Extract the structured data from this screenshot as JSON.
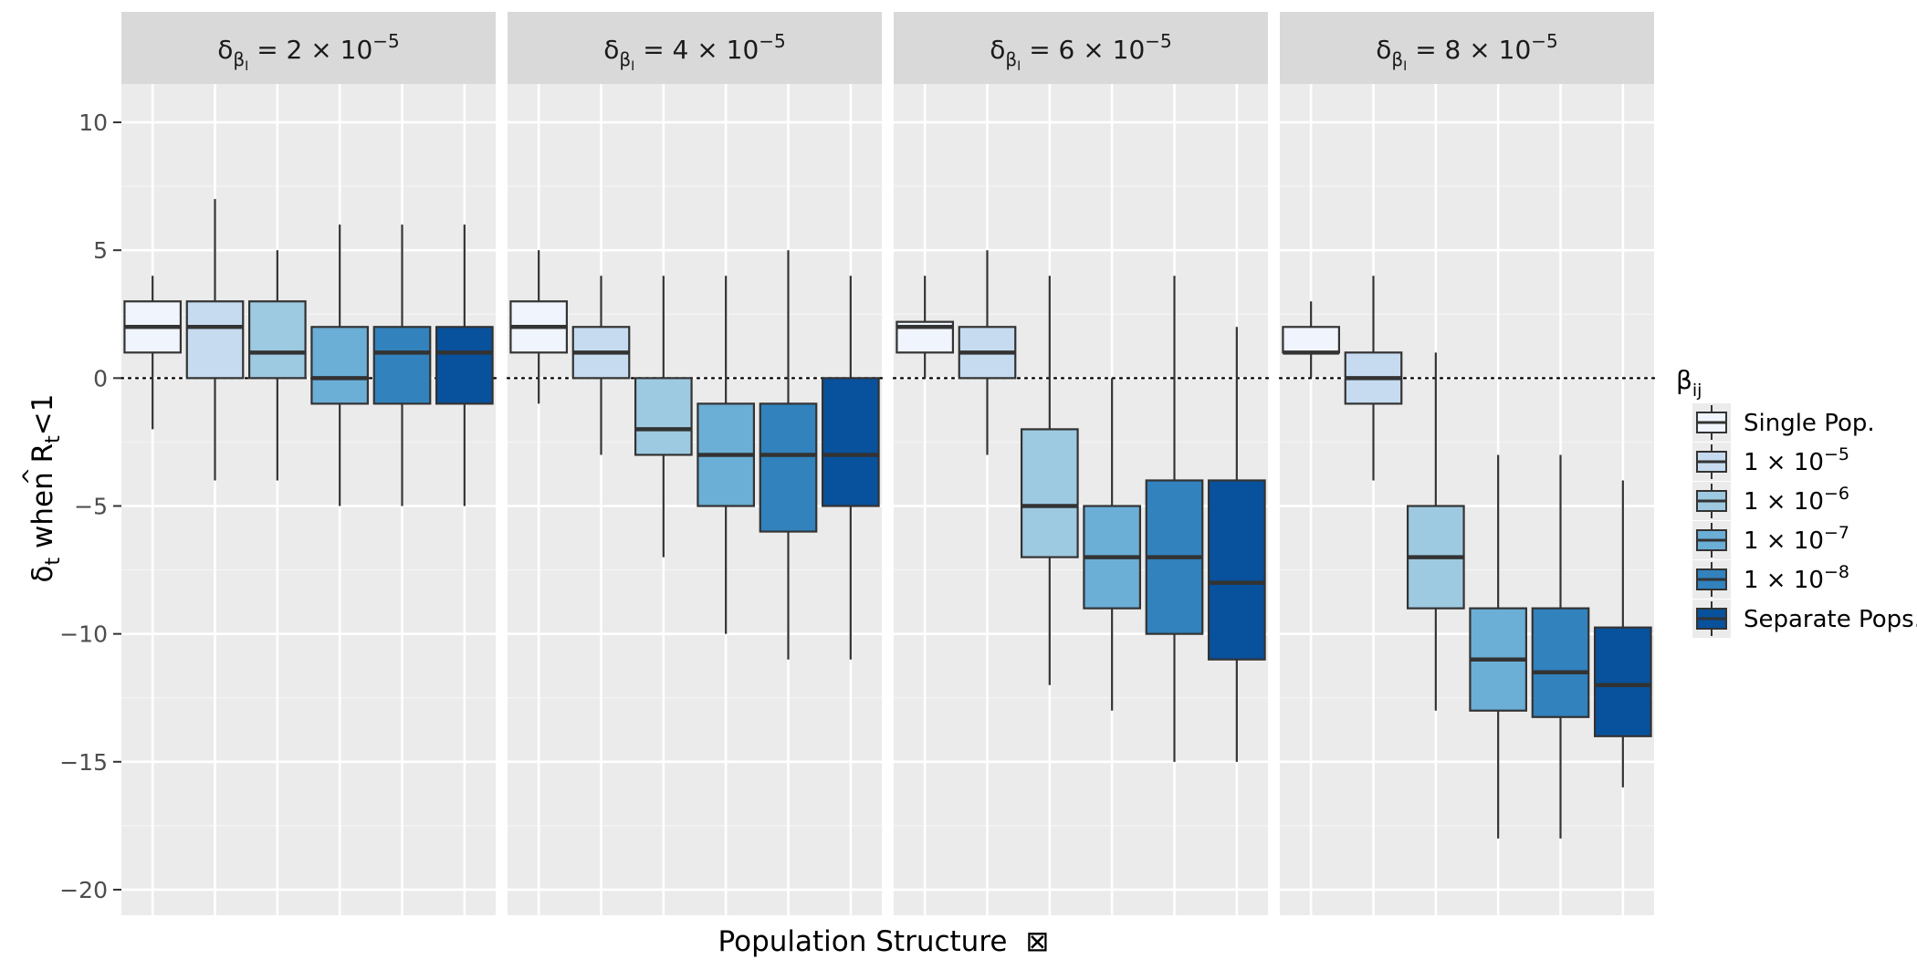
{
  "chart_data": {
    "type": "boxplot",
    "xlabel": "Population Structure",
    "xlabel_suffix": "⊠",
    "ylabel": {
      "prefix": "δ",
      "sub": "t",
      "middle": " when ",
      "hat_symbol": "R",
      "hat": "^",
      "hat_sub": "t",
      "suffix": "<1"
    },
    "ylim": [
      -21,
      11.5
    ],
    "yticks": [
      10,
      5,
      0,
      -5,
      -10,
      -15,
      -20
    ],
    "ytick_labels": [
      "10",
      "5",
      "0",
      "−5",
      "−10",
      "−15",
      "−20"
    ],
    "reference_line": 0,
    "legend": {
      "title_main": "β",
      "title_sub": "ij",
      "entries": [
        {
          "key": "single",
          "label": "Single Pop.",
          "color": "#F0F4FC"
        },
        {
          "key": "e5",
          "base": "1 × 10",
          "exp": "−5",
          "color": "#C6DBEF"
        },
        {
          "key": "e6",
          "base": "1 × 10",
          "exp": "−6",
          "color": "#9ECAE1"
        },
        {
          "key": "e7",
          "base": "1 × 10",
          "exp": "−7",
          "color": "#6BAED6"
        },
        {
          "key": "e8",
          "base": "1 × 10",
          "exp": "−8",
          "color": "#3182BD"
        },
        {
          "key": "sep",
          "label": "Separate Pops.",
          "color": "#08519C"
        }
      ]
    },
    "panels": [
      {
        "strip": {
          "prefix": "δ",
          "sub": "β",
          "subsub": "I",
          "eq": " = 2 × 10",
          "exp": "−5"
        },
        "boxes": [
          {
            "group": "Single Pop.",
            "min": -2,
            "q1": 1,
            "median": 2,
            "q3": 3,
            "max": 4
          },
          {
            "group": "1 × 10^-5",
            "min": -4,
            "q1": 0,
            "median": 2,
            "q3": 3,
            "max": 7
          },
          {
            "group": "1 × 10^-6",
            "min": -4,
            "q1": 0,
            "median": 1,
            "q3": 3,
            "max": 5
          },
          {
            "group": "1 × 10^-7",
            "min": -5,
            "q1": -1,
            "median": 0,
            "q3": 2,
            "max": 6
          },
          {
            "group": "1 × 10^-8",
            "min": -5,
            "q1": -1,
            "median": 1,
            "q3": 2,
            "max": 6
          },
          {
            "group": "Separate Pops.",
            "min": -5,
            "q1": -1,
            "median": 1,
            "q3": 2,
            "max": 6
          }
        ]
      },
      {
        "strip": {
          "prefix": "δ",
          "sub": "β",
          "subsub": "I",
          "eq": " = 4 × 10",
          "exp": "−5"
        },
        "boxes": [
          {
            "group": "Single Pop.",
            "min": -1,
            "q1": 1,
            "median": 2,
            "q3": 3,
            "max": 5
          },
          {
            "group": "1 × 10^-5",
            "min": -3,
            "q1": 0,
            "median": 1,
            "q3": 2,
            "max": 4
          },
          {
            "group": "1 × 10^-6",
            "min": -7,
            "q1": -3,
            "median": -2,
            "q3": 0,
            "max": 4
          },
          {
            "group": "1 × 10^-7",
            "min": -10,
            "q1": -5,
            "median": -3,
            "q3": -1,
            "max": 4
          },
          {
            "group": "1 × 10^-8",
            "min": -11,
            "q1": -6,
            "median": -3,
            "q3": -1,
            "max": 5
          },
          {
            "group": "Separate Pops.",
            "min": -11,
            "q1": -5,
            "median": -3,
            "q3": 0,
            "max": 4
          }
        ]
      },
      {
        "strip": {
          "prefix": "δ",
          "sub": "β",
          "subsub": "I",
          "eq": " = 6 × 10",
          "exp": "−5"
        },
        "boxes": [
          {
            "group": "Single Pop.",
            "min": 0,
            "q1": 1,
            "median": 2,
            "q3": 2.2,
            "max": 4
          },
          {
            "group": "1 × 10^-5",
            "min": -3,
            "q1": 0,
            "median": 1,
            "q3": 2,
            "max": 5
          },
          {
            "group": "1 × 10^-6",
            "min": -12,
            "q1": -7,
            "median": -5,
            "q3": -2,
            "max": 4
          },
          {
            "group": "1 × 10^-7",
            "min": -13,
            "q1": -9,
            "median": -7,
            "q3": -5,
            "max": 0
          },
          {
            "group": "1 × 10^-8",
            "min": -15,
            "q1": -10,
            "median": -7,
            "q3": -4,
            "max": 4
          },
          {
            "group": "Separate Pops.",
            "min": -15,
            "q1": -11,
            "median": -8,
            "q3": -4,
            "max": 2
          }
        ]
      },
      {
        "strip": {
          "prefix": "δ",
          "sub": "β",
          "subsub": "I",
          "eq": " = 8 × 10",
          "exp": "−5"
        },
        "boxes": [
          {
            "group": "Single Pop.",
            "min": 0,
            "q1": 1,
            "median": 1,
            "q3": 2,
            "max": 3
          },
          {
            "group": "1 × 10^-5",
            "min": -4,
            "q1": -1,
            "median": 0,
            "q3": 1,
            "max": 4
          },
          {
            "group": "1 × 10^-6",
            "min": -13,
            "q1": -9,
            "median": -7,
            "q3": -5,
            "max": 1
          },
          {
            "group": "1 × 10^-7",
            "min": -18,
            "q1": -13,
            "median": -11,
            "q3": -9,
            "max": -3
          },
          {
            "group": "1 × 10^-8",
            "min": -18,
            "q1": -13.25,
            "median": -11.5,
            "q3": -9,
            "max": -3
          },
          {
            "group": "Separate Pops.",
            "min": -16,
            "q1": -14,
            "median": -12,
            "q3": -9.75,
            "max": -4
          }
        ]
      }
    ]
  }
}
